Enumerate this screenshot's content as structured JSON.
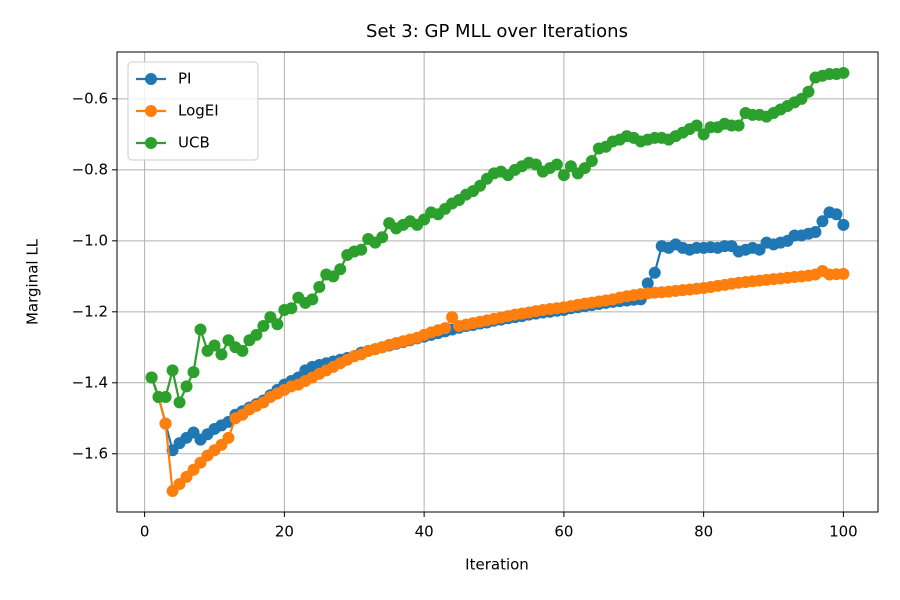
{
  "chart_data": {
    "type": "line",
    "title": "Set 3: GP MLL over Iterations",
    "xlabel": "Iteration",
    "ylabel": "Marginal LL",
    "x": [
      1,
      2,
      3,
      4,
      5,
      6,
      7,
      8,
      9,
      10,
      11,
      12,
      13,
      14,
      15,
      16,
      17,
      18,
      19,
      20,
      21,
      22,
      23,
      24,
      25,
      26,
      27,
      28,
      29,
      30,
      31,
      32,
      33,
      34,
      35,
      36,
      37,
      38,
      39,
      40,
      41,
      42,
      43,
      44,
      45,
      46,
      47,
      48,
      49,
      50,
      51,
      52,
      53,
      54,
      55,
      56,
      57,
      58,
      59,
      60,
      61,
      62,
      63,
      64,
      65,
      66,
      67,
      68,
      69,
      70,
      71,
      72,
      73,
      74,
      75,
      76,
      77,
      78,
      79,
      80,
      81,
      82,
      83,
      84,
      85,
      86,
      87,
      88,
      89,
      90,
      91,
      92,
      93,
      94,
      95,
      96,
      97,
      98,
      99,
      100
    ],
    "series": [
      {
        "name": "PI",
        "color": "#1f77b4",
        "values": [
          -1.385,
          -1.44,
          -1.515,
          -1.59,
          -1.57,
          -1.555,
          -1.54,
          -1.56,
          -1.545,
          -1.53,
          -1.52,
          -1.51,
          -1.49,
          -1.48,
          -1.47,
          -1.46,
          -1.45,
          -1.435,
          -1.42,
          -1.405,
          -1.395,
          -1.385,
          -1.365,
          -1.355,
          -1.35,
          -1.345,
          -1.34,
          -1.335,
          -1.33,
          -1.325,
          -1.315,
          -1.31,
          -1.305,
          -1.3,
          -1.295,
          -1.29,
          -1.285,
          -1.28,
          -1.275,
          -1.27,
          -1.265,
          -1.26,
          -1.255,
          -1.25,
          -1.245,
          -1.24,
          -1.237,
          -1.233,
          -1.23,
          -1.225,
          -1.222,
          -1.218,
          -1.215,
          -1.212,
          -1.208,
          -1.205,
          -1.202,
          -1.2,
          -1.197,
          -1.195,
          -1.19,
          -1.187,
          -1.184,
          -1.181,
          -1.178,
          -1.175,
          -1.172,
          -1.17,
          -1.168,
          -1.166,
          -1.165,
          -1.12,
          -1.09,
          -1.015,
          -1.02,
          -1.01,
          -1.02,
          -1.025,
          -1.02,
          -1.02,
          -1.018,
          -1.02,
          -1.015,
          -1.015,
          -1.03,
          -1.025,
          -1.02,
          -1.025,
          -1.005,
          -1.01,
          -1.005,
          -1.0,
          -0.985,
          -0.985,
          -0.98,
          -0.975,
          -0.945,
          -0.92,
          -0.925,
          -0.955
        ]
      },
      {
        "name": "LogEI",
        "color": "#ff7f0e",
        "values": [
          -1.385,
          -1.44,
          -1.515,
          -1.705,
          -1.685,
          -1.665,
          -1.645,
          -1.625,
          -1.605,
          -1.59,
          -1.575,
          -1.555,
          -1.5,
          -1.49,
          -1.475,
          -1.465,
          -1.455,
          -1.44,
          -1.43,
          -1.42,
          -1.41,
          -1.405,
          -1.395,
          -1.385,
          -1.375,
          -1.365,
          -1.355,
          -1.345,
          -1.335,
          -1.325,
          -1.32,
          -1.31,
          -1.305,
          -1.3,
          -1.293,
          -1.288,
          -1.283,
          -1.278,
          -1.273,
          -1.265,
          -1.258,
          -1.252,
          -1.246,
          -1.215,
          -1.24,
          -1.236,
          -1.232,
          -1.228,
          -1.224,
          -1.22,
          -1.216,
          -1.212,
          -1.208,
          -1.205,
          -1.202,
          -1.198,
          -1.195,
          -1.192,
          -1.19,
          -1.187,
          -1.184,
          -1.18,
          -1.177,
          -1.174,
          -1.171,
          -1.168,
          -1.165,
          -1.16,
          -1.156,
          -1.153,
          -1.15,
          -1.148,
          -1.146,
          -1.145,
          -1.143,
          -1.141,
          -1.139,
          -1.137,
          -1.135,
          -1.133,
          -1.13,
          -1.127,
          -1.124,
          -1.121,
          -1.118,
          -1.116,
          -1.114,
          -1.112,
          -1.11,
          -1.108,
          -1.106,
          -1.104,
          -1.102,
          -1.1,
          -1.098,
          -1.095,
          -1.085,
          -1.095,
          -1.094,
          -1.093
        ]
      },
      {
        "name": "UCB",
        "color": "#2ca02c",
        "values": [
          -1.385,
          -1.44,
          -1.44,
          -1.365,
          -1.455,
          -1.41,
          -1.37,
          -1.25,
          -1.31,
          -1.295,
          -1.32,
          -1.28,
          -1.3,
          -1.31,
          -1.28,
          -1.265,
          -1.24,
          -1.215,
          -1.235,
          -1.195,
          -1.19,
          -1.16,
          -1.175,
          -1.165,
          -1.13,
          -1.095,
          -1.1,
          -1.08,
          -1.04,
          -1.03,
          -1.025,
          -0.995,
          -1.005,
          -0.99,
          -0.95,
          -0.965,
          -0.955,
          -0.945,
          -0.955,
          -0.94,
          -0.92,
          -0.925,
          -0.91,
          -0.895,
          -0.885,
          -0.87,
          -0.86,
          -0.845,
          -0.825,
          -0.81,
          -0.805,
          -0.815,
          -0.8,
          -0.79,
          -0.78,
          -0.785,
          -0.805,
          -0.795,
          -0.785,
          -0.815,
          -0.79,
          -0.81,
          -0.795,
          -0.775,
          -0.74,
          -0.735,
          -0.72,
          -0.715,
          -0.705,
          -0.71,
          -0.72,
          -0.715,
          -0.71,
          -0.71,
          -0.715,
          -0.705,
          -0.695,
          -0.685,
          -0.675,
          -0.7,
          -0.68,
          -0.68,
          -0.67,
          -0.675,
          -0.675,
          -0.64,
          -0.645,
          -0.645,
          -0.65,
          -0.64,
          -0.63,
          -0.62,
          -0.61,
          -0.6,
          -0.58,
          -0.54,
          -0.535,
          -0.53,
          -0.53,
          -0.527
        ]
      }
    ],
    "xlim": [
      -3.95,
      104.95
    ],
    "xticks": [
      0,
      20,
      40,
      60,
      80,
      100
    ],
    "ylim": [
      -1.764,
      -0.468
    ],
    "yticks": [
      {
        "value": -1.6,
        "label": "−1.6"
      },
      {
        "value": -1.4,
        "label": "−1.4"
      },
      {
        "value": -1.2,
        "label": "−1.2"
      },
      {
        "value": -1.0,
        "label": "−1.0"
      },
      {
        "value": -0.8,
        "label": "−0.8"
      },
      {
        "value": -0.6,
        "label": "−0.6"
      }
    ],
    "grid": true,
    "legend": "upper left"
  }
}
